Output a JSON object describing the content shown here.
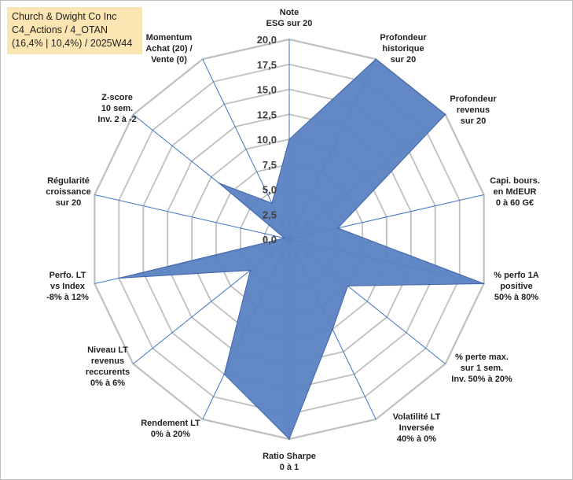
{
  "title_box": {
    "line1": "Church & Dwight Co Inc",
    "line2": "C4_Actions / 4_OTAN",
    "line3": "(16,4% | 10,4%) / 2025W44"
  },
  "colors": {
    "fill": "#5b82c3",
    "stroke": "#3f66a8",
    "grid": "#bfbfbf",
    "spoke": "#3f72c6"
  },
  "chart_data": {
    "type": "radar",
    "rmax": 20,
    "ticks": [
      "0,0",
      "2,5",
      "5,0",
      "7,5",
      "10,0",
      "12,5",
      "15,0",
      "17,5",
      "20,0"
    ],
    "tick_values": [
      0,
      2.5,
      5,
      7.5,
      10,
      12.5,
      15,
      17.5,
      20
    ],
    "axes": [
      {
        "label": [
          "Note",
          "ESG sur 20"
        ],
        "value": 10
      },
      {
        "label": [
          "Profondeur",
          "historique",
          "sur 20"
        ],
        "value": 20
      },
      {
        "label": [
          "Profondeur",
          "revenus",
          "sur 20"
        ],
        "value": 20
      },
      {
        "label": [
          "Capi. bours.",
          "en MdEUR",
          "0 à 60 G€"
        ],
        "value": 5
      },
      {
        "label": [
          "% perfo 1A",
          "positive",
          "50% à 80%"
        ],
        "value": 20
      },
      {
        "label": [
          "% perte max.",
          "sur 1 sem.",
          "Inv. 50% à 20%"
        ],
        "value": 7.5
      },
      {
        "label": [
          "Volatilité LT",
          "Inversée",
          "40% à 0%"
        ],
        "value": 10
      },
      {
        "label": [
          "Ratio Sharpe",
          "0 à 1"
        ],
        "value": 20
      },
      {
        "label": [
          "Rendement LT",
          "0% à 20%"
        ],
        "value": 15
      },
      {
        "label": [
          "Niveau LT",
          "revenus",
          "reccurents",
          "0% à 6%"
        ],
        "value": 5
      },
      {
        "label": [
          "Perfo. LT",
          "vs Index",
          "-8% à 12%"
        ],
        "value": 17.5
      },
      {
        "label": [
          "Régularité",
          "croissance",
          "sur 20"
        ],
        "value": 0.5
      },
      {
        "label": [
          "Z-score",
          "10 sem.",
          "Inv. 2 à -2"
        ],
        "value": 9
      },
      {
        "label": [
          "Momentum",
          "Achat (20) /",
          "Vente (0)"
        ],
        "value": 4
      }
    ]
  }
}
